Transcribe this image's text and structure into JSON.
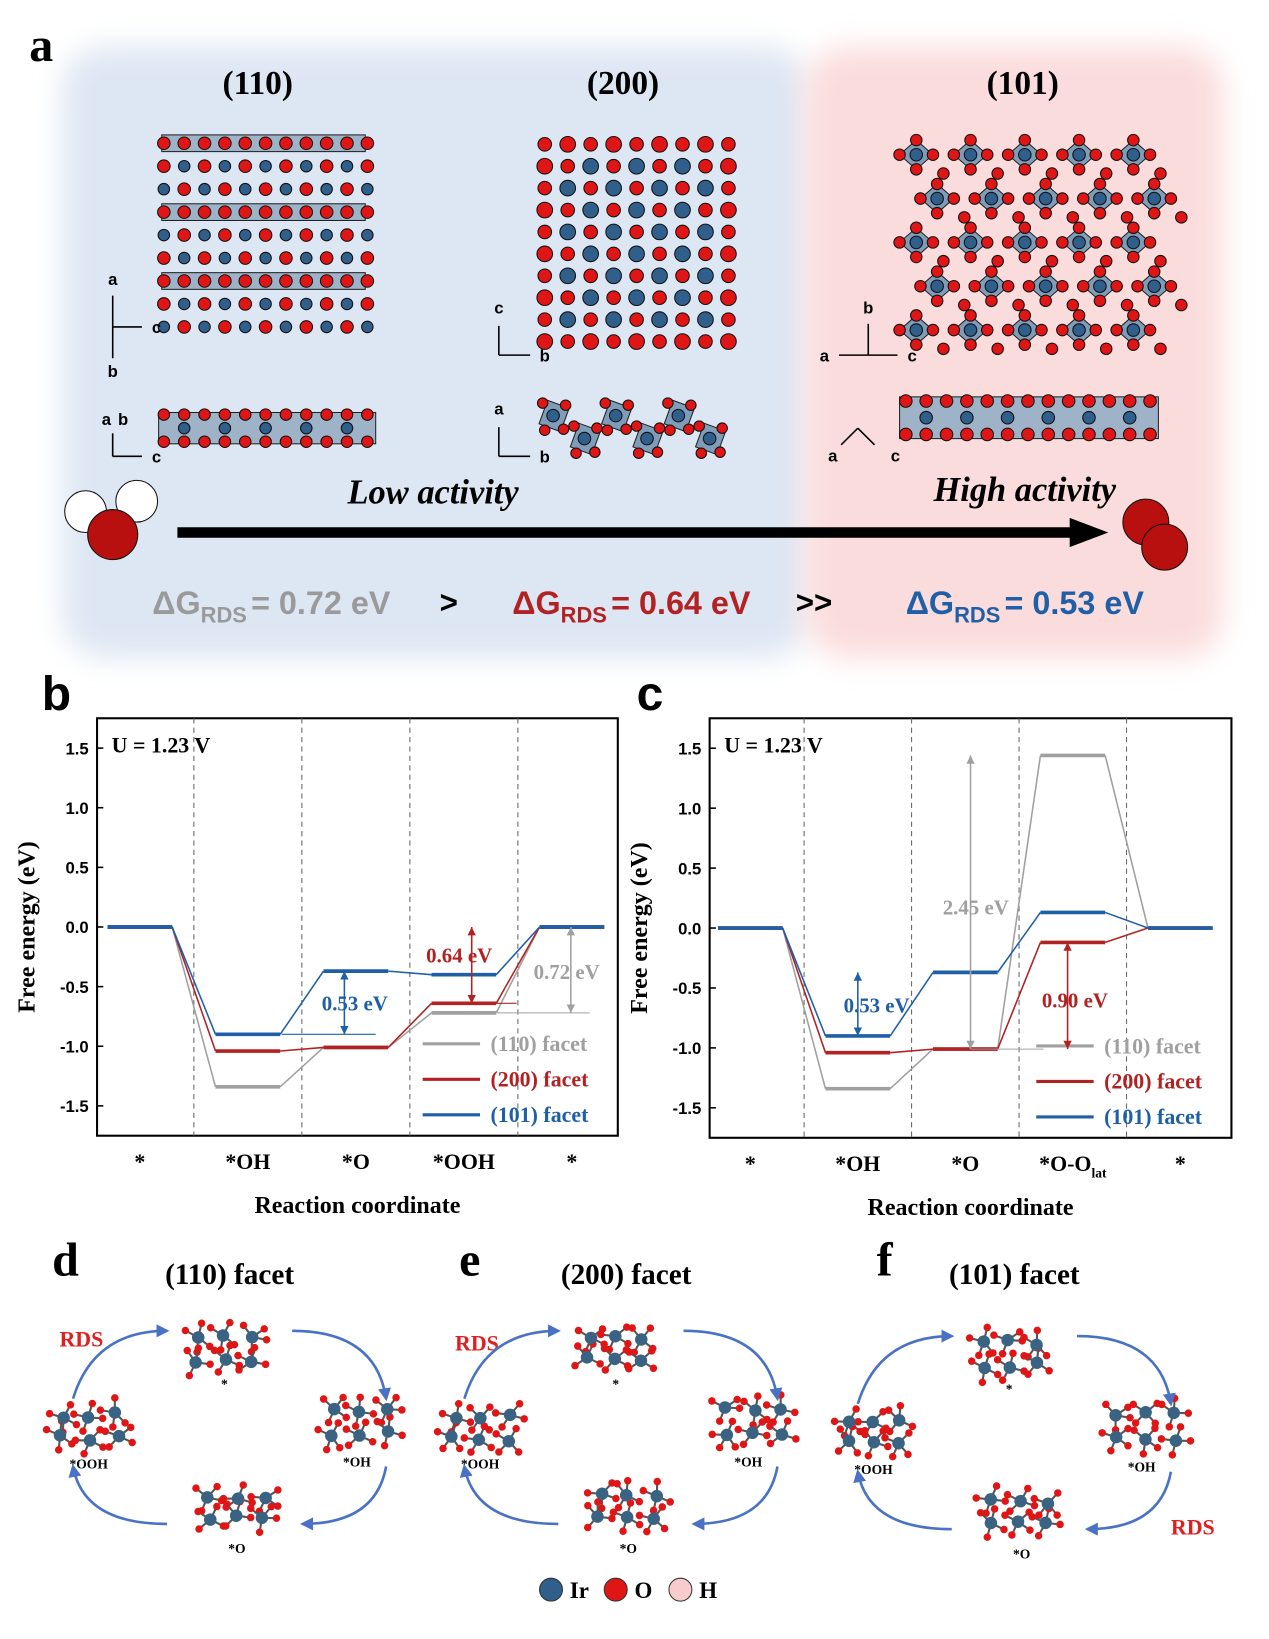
{
  "panel_a": {
    "label": "a",
    "facets": [
      {
        "title": "(110)",
        "top_axes": [
          "a",
          "c",
          "b"
        ],
        "side_axes": [
          "a",
          "b",
          "c"
        ]
      },
      {
        "title": "(200)",
        "top_axes": [
          "c",
          "b"
        ],
        "side_axes": [
          "a",
          "b"
        ]
      },
      {
        "title": "(101)",
        "top_axes": [
          "b",
          "a",
          "c"
        ],
        "side_axes": [
          "a",
          "c"
        ]
      }
    ],
    "low_activity": "Low activity",
    "high_activity": "High activity",
    "energies": [
      {
        "symbol": "ΔG",
        "subscript": "RDS",
        "text": "= 0.72 eV",
        "color": "#9a9a9a"
      },
      {
        "symbol": "ΔG",
        "subscript": "RDS",
        "text": "= 0.64 eV",
        "color": "#b22222"
      },
      {
        "symbol": "ΔG",
        "subscript": "RDS",
        "text": "= 0.53 eV",
        "color": "#1f5fa8"
      }
    ],
    "comparators": [
      ">",
      ">>"
    ]
  },
  "chart_data": [
    {
      "type": "energy-profile",
      "label": "b",
      "condition": "U = 1.23 V",
      "xlabel": "Reaction coordinate",
      "ylabel": "Free energy (eV)",
      "categories": [
        "*",
        "*OH",
        "*O",
        "*OOH",
        "*"
      ],
      "category_subscripts": {},
      "ylim": [
        -1.75,
        1.75
      ],
      "yticks": [
        -1.5,
        {
          "value": -1,
          "label": "-1.0"
        },
        -0.5,
        {
          "value": 0,
          "label": "0.0"
        },
        0.5,
        {
          "value": 1,
          "label": "1.0"
        },
        1.5
      ],
      "legend": "lower right",
      "series": [
        {
          "name": "(110) facet",
          "color": "#a0a0a0",
          "values": [
            0,
            -1.34,
            -1.01,
            -0.72,
            0
          ]
        },
        {
          "name": "(200) facet",
          "color": "#b22222",
          "values": [
            0,
            -1.04,
            -1.01,
            -0.64,
            0
          ]
        },
        {
          "name": "(101) facet",
          "color": "#1f5fa8",
          "values": [
            0,
            -0.9,
            -0.37,
            -0.4,
            0
          ]
        }
      ],
      "annotations": [
        {
          "text": "0.53 eV",
          "color": "#1f5fa8"
        },
        {
          "text": "0.64 eV",
          "color": "#b22222"
        },
        {
          "text": "0.72 eV",
          "color": "#a0a0a0"
        }
      ]
    },
    {
      "type": "energy-profile",
      "label": "c",
      "condition": "U = 1.23 V",
      "xlabel": "Reaction coordinate",
      "ylabel": "Free energy (eV)",
      "categories": [
        "*",
        "*OH",
        "*O",
        "*O-O",
        "*"
      ],
      "category_subscripts": {
        "3": "lat"
      },
      "ylim": [
        -1.75,
        1.75
      ],
      "yticks": [
        -1.5,
        {
          "value": -1,
          "label": "-1.0"
        },
        -0.5,
        {
          "value": 0,
          "label": "0.0"
        },
        0.5,
        {
          "value": 1,
          "label": "1.0"
        },
        1.5
      ],
      "legend": "lower right",
      "series": [
        {
          "name": "(110) facet",
          "color": "#a0a0a0",
          "values": [
            0,
            -1.34,
            -1.01,
            1.44,
            0
          ]
        },
        {
          "name": "(200) facet",
          "color": "#b22222",
          "values": [
            0,
            -1.04,
            -1.01,
            -0.12,
            0
          ]
        },
        {
          "name": "(101) facet",
          "color": "#1f5fa8",
          "values": [
            0,
            -0.9,
            -0.37,
            0.13,
            0
          ]
        }
      ],
      "annotations": [
        {
          "text": "0.53 eV",
          "color": "#1f5fa8"
        },
        {
          "text": "2.45 eV",
          "color": "#a0a0a0"
        },
        {
          "text": "0.90 eV",
          "color": "#b22222"
        }
      ]
    }
  ],
  "cycles": [
    {
      "label": "d",
      "title": "(110) facet",
      "rds": "RDS",
      "states": [
        "*",
        "*OH",
        "*O",
        "*OOH"
      ]
    },
    {
      "label": "e",
      "title": "(200) facet",
      "rds": "RDS",
      "states": [
        "*",
        "*OH",
        "*O",
        "*OOH"
      ]
    },
    {
      "label": "f",
      "title": "(101) facet",
      "rds": "RDS",
      "states": [
        "*",
        "*OH",
        "*O",
        "*OOH"
      ]
    }
  ],
  "element_legend": [
    "Ir",
    "O",
    "H"
  ]
}
